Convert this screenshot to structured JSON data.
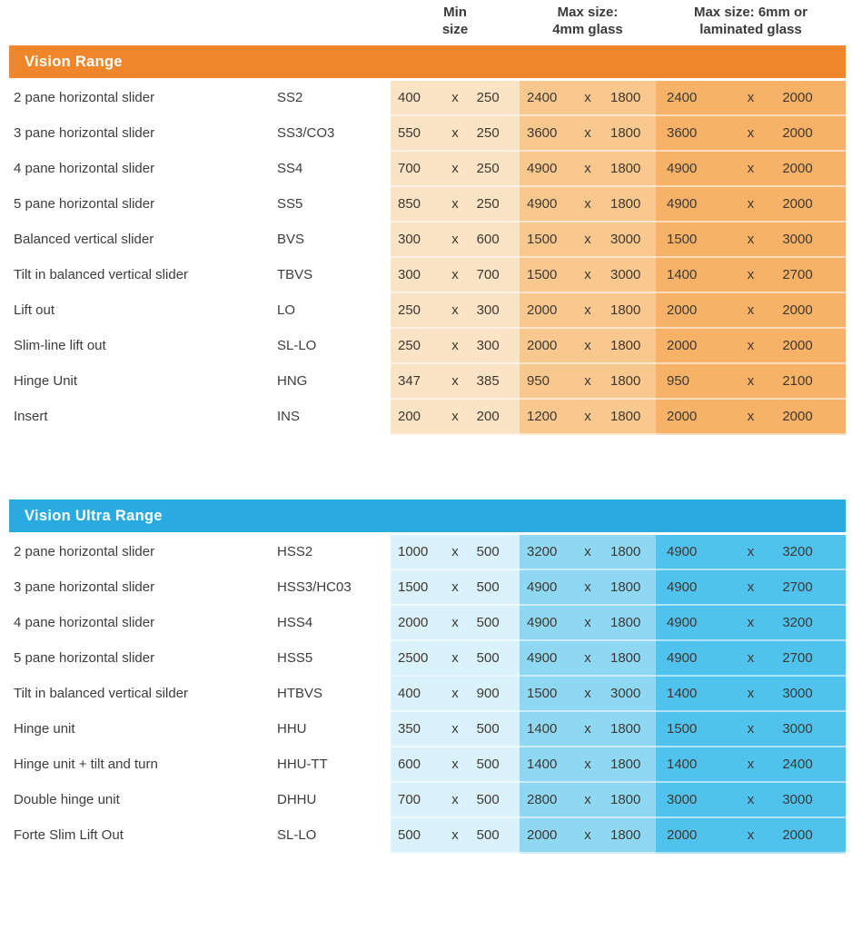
{
  "column_headers": [
    {
      "line1": "Min",
      "line2": "size"
    },
    {
      "line1": "Max size:",
      "line2": "4mm glass"
    },
    {
      "line1": "Max size: 6mm or",
      "line2": "laminated glass"
    }
  ],
  "separator": "x",
  "tables": [
    {
      "title": "Vision Range",
      "theme": {
        "header_bg": "#F0862C",
        "min_col_bg": "#FBE3C5",
        "max4_col_bg": "#F9C88F",
        "max6_col_bg": "#F7B267"
      },
      "rows": [
        {
          "name": "2 pane horizontal slider",
          "code": "SS2",
          "min": [
            "400",
            "250"
          ],
          "max4": [
            "2400",
            "1800"
          ],
          "max6": [
            "2400",
            "2000"
          ]
        },
        {
          "name": "3 pane horizontal slider",
          "code": "SS3/CO3",
          "min": [
            "550",
            "250"
          ],
          "max4": [
            "3600",
            "1800"
          ],
          "max6": [
            "3600",
            "2000"
          ]
        },
        {
          "name": "4 pane horizontal slider",
          "code": "SS4",
          "min": [
            "700",
            "250"
          ],
          "max4": [
            "4900",
            "1800"
          ],
          "max6": [
            "4900",
            "2000"
          ]
        },
        {
          "name": "5 pane horizontal slider",
          "code": "SS5",
          "min": [
            "850",
            "250"
          ],
          "max4": [
            "4900",
            "1800"
          ],
          "max6": [
            "4900",
            "2000"
          ]
        },
        {
          "name": "Balanced vertical slider",
          "code": "BVS",
          "min": [
            "300",
            "600"
          ],
          "max4": [
            "1500",
            "3000"
          ],
          "max6": [
            "1500",
            "3000"
          ]
        },
        {
          "name": "Tilt in balanced vertical slider",
          "code": "TBVS",
          "min": [
            "300",
            "700"
          ],
          "max4": [
            "1500",
            "3000"
          ],
          "max6": [
            "1400",
            "2700"
          ]
        },
        {
          "name": "Lift out",
          "code": "LO",
          "min": [
            "250",
            "300"
          ],
          "max4": [
            "2000",
            "1800"
          ],
          "max6": [
            "2000",
            "2000"
          ]
        },
        {
          "name": "Slim-line lift out",
          "code": "SL-LO",
          "min": [
            "250",
            "300"
          ],
          "max4": [
            "2000",
            "1800"
          ],
          "max6": [
            "2000",
            "2000"
          ]
        },
        {
          "name": "Hinge Unit",
          "code": "HNG",
          "min": [
            "347",
            "385"
          ],
          "max4": [
            "950",
            "1800"
          ],
          "max6": [
            "950",
            "2100"
          ]
        },
        {
          "name": "Insert",
          "code": "INS",
          "min": [
            "200",
            "200"
          ],
          "max4": [
            "1200",
            "1800"
          ],
          "max6": [
            "2000",
            "2000"
          ]
        }
      ]
    },
    {
      "title": "Vision Ultra Range",
      "theme": {
        "header_bg": "#29ABE2",
        "min_col_bg": "#DAF2FB",
        "max4_col_bg": "#8FD8F4",
        "max6_col_bg": "#4FC2EE"
      },
      "rows": [
        {
          "name": "2 pane horizontal slider",
          "code": "HSS2",
          "min": [
            "1000",
            "500"
          ],
          "max4": [
            "3200",
            "1800"
          ],
          "max6": [
            "4900",
            "3200"
          ]
        },
        {
          "name": "3 pane horizontal slider",
          "code": "HSS3/HC03",
          "min": [
            "1500",
            "500"
          ],
          "max4": [
            "4900",
            "1800"
          ],
          "max6": [
            "4900",
            "2700"
          ]
        },
        {
          "name": "4 pane horizontal slider",
          "code": "HSS4",
          "min": [
            "2000",
            "500"
          ],
          "max4": [
            "4900",
            "1800"
          ],
          "max6": [
            "4900",
            "3200"
          ]
        },
        {
          "name": "5 pane horizontal slider",
          "code": "HSS5",
          "min": [
            "2500",
            "500"
          ],
          "max4": [
            "4900",
            "1800"
          ],
          "max6": [
            "4900",
            "2700"
          ]
        },
        {
          "name": "Tilt in balanced vertical silder",
          "code": "HTBVS",
          "min": [
            "400",
            "900"
          ],
          "max4": [
            "1500",
            "3000"
          ],
          "max6": [
            "1400",
            "3000"
          ]
        },
        {
          "name": "Hinge unit",
          "code": "HHU",
          "min": [
            "350",
            "500"
          ],
          "max4": [
            "1400",
            "1800"
          ],
          "max6": [
            "1500",
            "3000"
          ]
        },
        {
          "name": "Hinge unit + tilt and turn",
          "code": "HHU-TT",
          "min": [
            "600",
            "500"
          ],
          "max4": [
            "1400",
            "1800"
          ],
          "max6": [
            "1400",
            "2400"
          ]
        },
        {
          "name": "Double hinge unit",
          "code": "DHHU",
          "min": [
            "700",
            "500"
          ],
          "max4": [
            "2800",
            "1800"
          ],
          "max6": [
            "3000",
            "3000"
          ]
        },
        {
          "name": "Forte Slim Lift Out",
          "code": "SL-LO",
          "min": [
            "500",
            "500"
          ],
          "max4": [
            "2000",
            "1800"
          ],
          "max6": [
            "2000",
            "2000"
          ]
        }
      ]
    }
  ]
}
